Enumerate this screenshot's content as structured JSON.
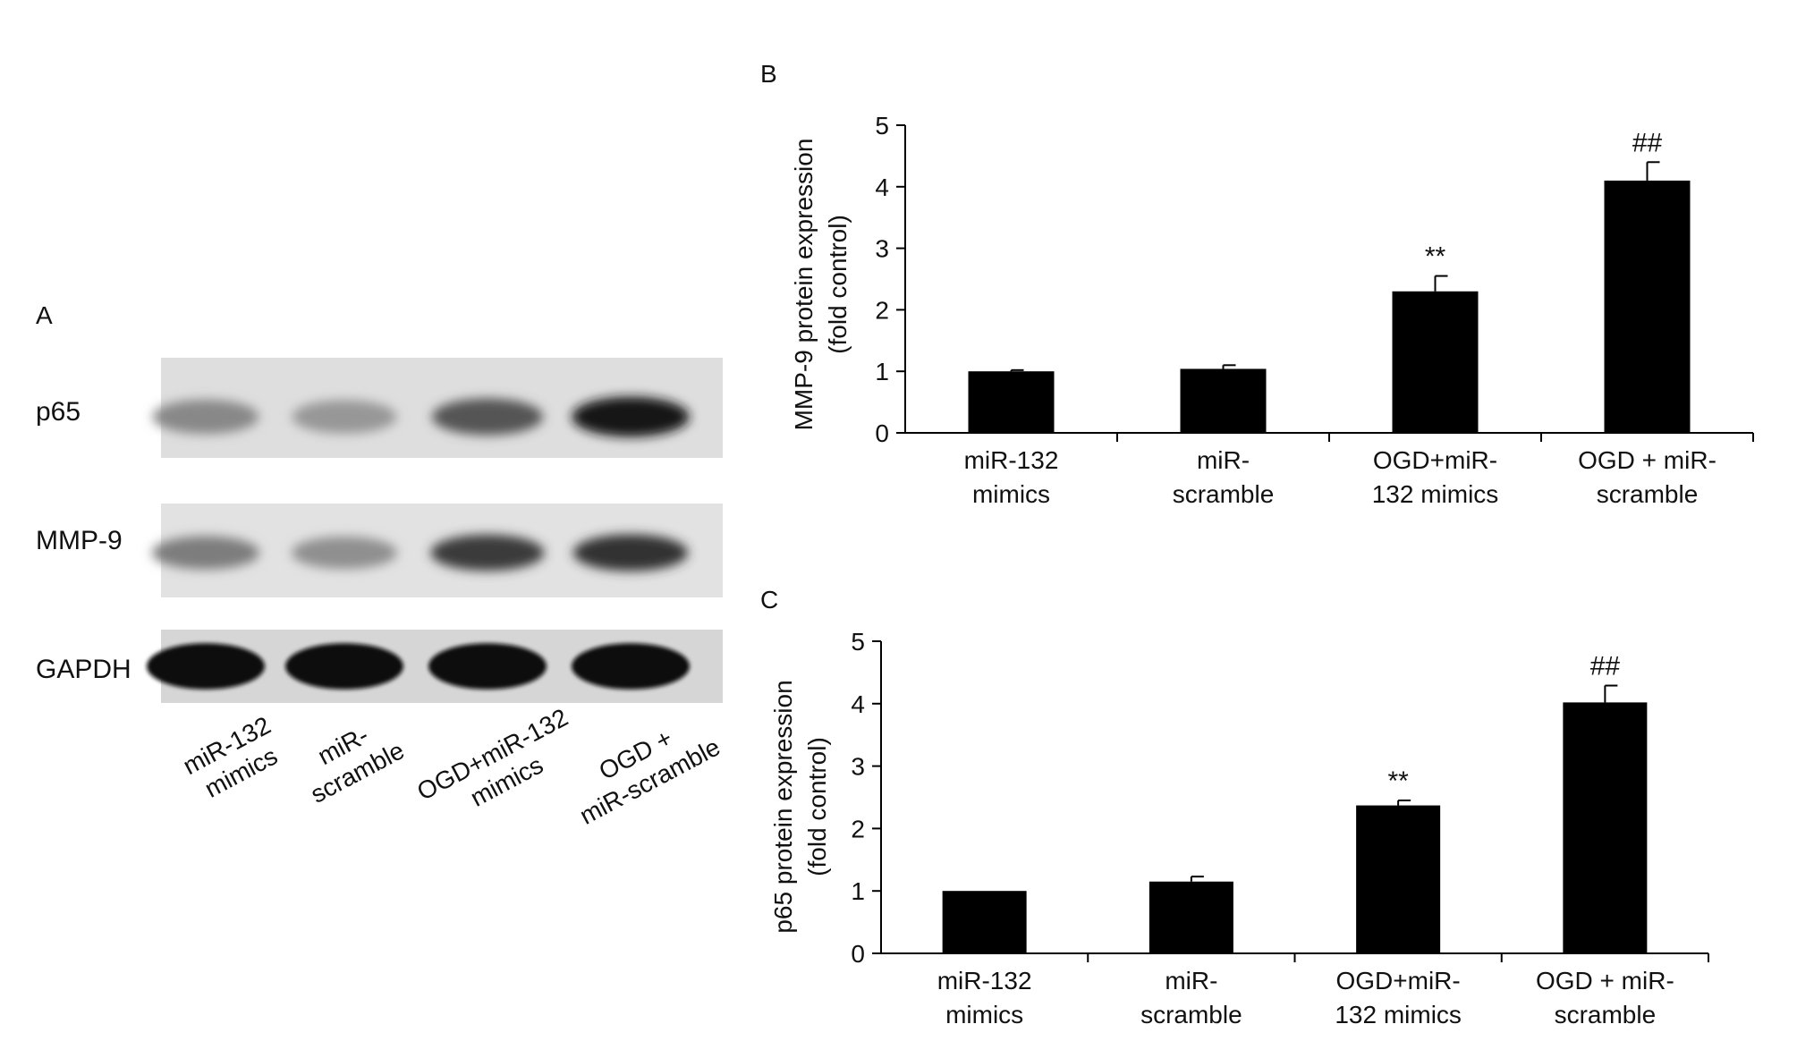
{
  "panel_a": {
    "letter": "A",
    "rows": [
      {
        "label": "p65",
        "intensities": [
          0.45,
          0.38,
          0.68,
          0.98
        ]
      },
      {
        "label": "MMP-9",
        "intensities": [
          0.5,
          0.42,
          0.8,
          0.85
        ]
      },
      {
        "label": "GAPDH",
        "intensities": [
          1.0,
          1.0,
          1.0,
          1.0
        ]
      }
    ],
    "lanes": [
      [
        "miR-132",
        "mimics"
      ],
      [
        "miR-",
        "scramble"
      ],
      [
        "OGD+miR-132",
        "mimics"
      ],
      [
        "OGD +",
        "miR-scramble"
      ]
    ]
  },
  "chart_data": [
    {
      "panel": "B",
      "type": "bar",
      "categories": [
        [
          "miR-132",
          "mimics"
        ],
        [
          "miR-",
          "scramble"
        ],
        [
          "OGD+miR-",
          "132 mimics"
        ],
        [
          "OGD + miR-",
          "scramble"
        ]
      ],
      "values": [
        1.0,
        1.04,
        2.3,
        4.1
      ],
      "errors": [
        0.02,
        0.06,
        0.25,
        0.3
      ],
      "annotations": [
        "",
        "",
        "**",
        "##"
      ],
      "ylabel": [
        "MMP-9 protein expression",
        "(fold control)"
      ],
      "xlabel": "",
      "ylim": [
        0,
        5
      ],
      "yticks": [
        0,
        1,
        2,
        3,
        4,
        5
      ],
      "grid": false,
      "bar_color": "#000000"
    },
    {
      "panel": "C",
      "type": "bar",
      "categories": [
        [
          "miR-132",
          "mimics"
        ],
        [
          "miR-",
          "scramble"
        ],
        [
          "OGD+miR-",
          "132 mimics"
        ],
        [
          "OGD + miR-",
          "scramble"
        ]
      ],
      "values": [
        1.0,
        1.15,
        2.37,
        4.02
      ],
      "errors": [
        0.0,
        0.08,
        0.08,
        0.27
      ],
      "annotations": [
        "",
        "",
        "**",
        "##"
      ],
      "ylabel": [
        "p65 protein expression",
        "(fold control)"
      ],
      "xlabel": "",
      "ylim": [
        0,
        5
      ],
      "yticks": [
        0,
        1,
        2,
        3,
        4,
        5
      ],
      "grid": false,
      "bar_color": "#000000"
    }
  ]
}
